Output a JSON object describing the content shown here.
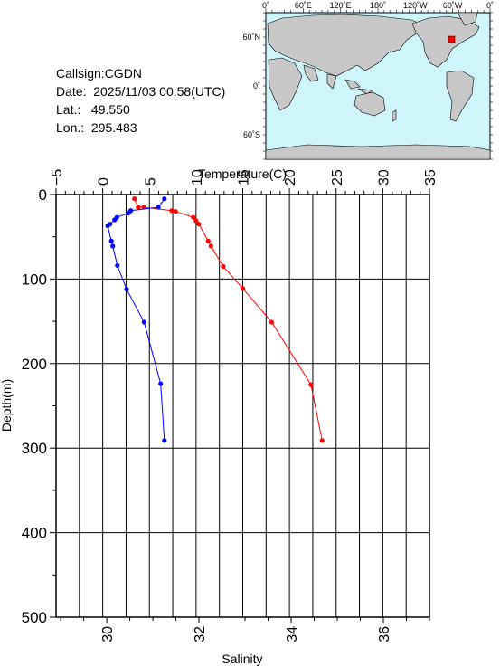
{
  "station": {
    "callsign": "Callsign:CGDN",
    "date": "Date:  2025/11/03 00:58(UTC)",
    "lat": "Lat.:   49.550",
    "lon": "Lon.:  295.483"
  },
  "map": {
    "top_labels": [
      "0˚",
      "60˚E",
      "120˚E",
      "180˚",
      "120˚W",
      "60˚W",
      "0˚"
    ],
    "left_labels": [
      "60˚N",
      "0˚",
      "60˚S"
    ],
    "ocean_color": "#cdf5fa",
    "land_color": "#c8c8c8",
    "marker_color": "#ff0000"
  },
  "chart_data": {
    "type": "line",
    "xlabel_top": "Temperature(C)",
    "xlabel_bottom": "Salinity",
    "ylabel": "Depth(m)",
    "temperature_ticks": [
      "−5",
      "0",
      "5",
      "10",
      "15",
      "20",
      "25",
      "30",
      "35"
    ],
    "salinity_ticks": [
      "30",
      "32",
      "34",
      "36"
    ],
    "depth_ticks": [
      "0",
      "100",
      "200",
      "300",
      "400",
      "500"
    ],
    "temperature_range": [
      -5,
      35
    ],
    "salinity_range": [
      28.9,
      37.0
    ],
    "depth_range": [
      0,
      500
    ],
    "grid": true,
    "series": [
      {
        "key": "temperature",
        "color": "#ff0000",
        "points": [
          [
            3.4,
            5
          ],
          [
            3.8,
            15
          ],
          [
            4.4,
            15
          ],
          [
            7.4,
            19
          ],
          [
            7.8,
            20
          ],
          [
            9.7,
            27
          ],
          [
            10.0,
            31
          ],
          [
            10.3,
            35
          ],
          [
            11.3,
            55
          ],
          [
            11.6,
            61
          ],
          [
            12.9,
            85
          ],
          [
            15.0,
            111
          ],
          [
            18.1,
            151
          ],
          [
            22.3,
            225
          ],
          [
            23.5,
            291
          ]
        ]
      },
      {
        "key": "salinity",
        "color": "#0000ff",
        "points": [
          [
            31.25,
            5
          ],
          [
            31.12,
            15
          ],
          [
            30.52,
            19
          ],
          [
            30.47,
            22
          ],
          [
            30.22,
            27
          ],
          [
            30.17,
            30
          ],
          [
            30.07,
            35
          ],
          [
            30.02,
            37
          ],
          [
            30.1,
            55
          ],
          [
            30.13,
            61
          ],
          [
            30.23,
            84
          ],
          [
            30.43,
            112
          ],
          [
            30.81,
            151
          ],
          [
            31.17,
            224
          ],
          [
            31.25,
            291
          ]
        ]
      }
    ]
  }
}
